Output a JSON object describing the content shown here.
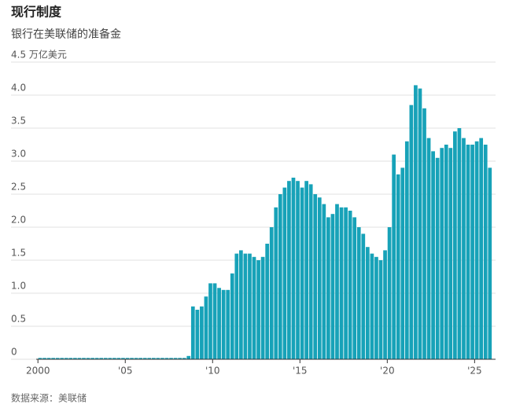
{
  "chart_data": {
    "type": "bar",
    "title": "现行制度",
    "subtitle": "银行在美联储的准备金",
    "source": "数据来源：美联储",
    "color": "#17a2b8",
    "grid": true,
    "xlim": [
      1999.9,
      2026.2
    ],
    "xticks": [
      {
        "value": 2000,
        "label": "2000"
      },
      {
        "value": 2005,
        "label": "'05"
      },
      {
        "value": 2010,
        "label": "'10"
      },
      {
        "value": 2015,
        "label": "'15"
      },
      {
        "value": 2020,
        "label": "'20"
      },
      {
        "value": 2025,
        "label": "'25"
      }
    ],
    "ylim": [
      0,
      4.5
    ],
    "yticks": [
      0,
      0.5,
      {
        "value": 1,
        "label": "1.0"
      },
      1.5,
      {
        "value": 2,
        "label": "2.0"
      },
      2.5,
      {
        "value": 3,
        "label": "3.0"
      },
      3.5,
      {
        "value": 4,
        "label": "4.0"
      },
      {
        "value": 4.5,
        "label": "4.5 万亿美元"
      }
    ],
    "x": [
      2000.125,
      2000.375,
      2000.625,
      2000.875,
      2001.125,
      2001.375,
      2001.625,
      2001.875,
      2002.125,
      2002.375,
      2002.625,
      2002.875,
      2003.125,
      2003.375,
      2003.625,
      2003.875,
      2004.125,
      2004.375,
      2004.625,
      2004.875,
      2005.125,
      2005.375,
      2005.625,
      2005.875,
      2006.125,
      2006.375,
      2006.625,
      2006.875,
      2007.125,
      2007.375,
      2007.625,
      2007.875,
      2008.125,
      2008.375,
      2008.625,
      2008.875,
      2009.125,
      2009.375,
      2009.625,
      2009.875,
      2010.125,
      2010.375,
      2010.625,
      2010.875,
      2011.125,
      2011.375,
      2011.625,
      2011.875,
      2012.125,
      2012.375,
      2012.625,
      2012.875,
      2013.125,
      2013.375,
      2013.625,
      2013.875,
      2014.125,
      2014.375,
      2014.625,
      2014.875,
      2015.125,
      2015.375,
      2015.625,
      2015.875,
      2016.125,
      2016.375,
      2016.625,
      2016.875,
      2017.125,
      2017.375,
      2017.625,
      2017.875,
      2018.125,
      2018.375,
      2018.625,
      2018.875,
      2019.125,
      2019.375,
      2019.625,
      2019.875,
      2020.125,
      2020.375,
      2020.625,
      2020.875,
      2021.125,
      2021.375,
      2021.625,
      2021.875,
      2022.125,
      2022.375,
      2022.625,
      2022.875,
      2023.125,
      2023.375,
      2023.625,
      2023.875,
      2024.125,
      2024.375,
      2024.625,
      2024.875,
      2025.125,
      2025.375,
      2025.625,
      2025.875
    ],
    "values": [
      0.02,
      0.02,
      0.02,
      0.02,
      0.02,
      0.02,
      0.02,
      0.02,
      0.02,
      0.02,
      0.02,
      0.02,
      0.02,
      0.02,
      0.02,
      0.02,
      0.02,
      0.02,
      0.02,
      0.02,
      0.02,
      0.02,
      0.02,
      0.02,
      0.02,
      0.02,
      0.02,
      0.02,
      0.02,
      0.02,
      0.02,
      0.02,
      0.02,
      0.02,
      0.05,
      0.8,
      0.75,
      0.8,
      0.95,
      1.15,
      1.15,
      1.08,
      1.05,
      1.05,
      1.3,
      1.6,
      1.65,
      1.6,
      1.6,
      1.55,
      1.5,
      1.55,
      1.75,
      2.0,
      2.3,
      2.5,
      2.6,
      2.7,
      2.75,
      2.7,
      2.6,
      2.7,
      2.65,
      2.5,
      2.45,
      2.35,
      2.15,
      2.2,
      2.35,
      2.3,
      2.3,
      2.25,
      2.15,
      2.0,
      1.9,
      1.7,
      1.6,
      1.55,
      1.5,
      1.65,
      2.0,
      3.1,
      2.8,
      2.9,
      3.3,
      3.85,
      4.15,
      4.1,
      3.8,
      3.35,
      3.15,
      3.05,
      3.2,
      3.25,
      3.2,
      3.45,
      3.5,
      3.35,
      3.25,
      3.25,
      3.3,
      3.35,
      3.25,
      2.9
    ]
  }
}
